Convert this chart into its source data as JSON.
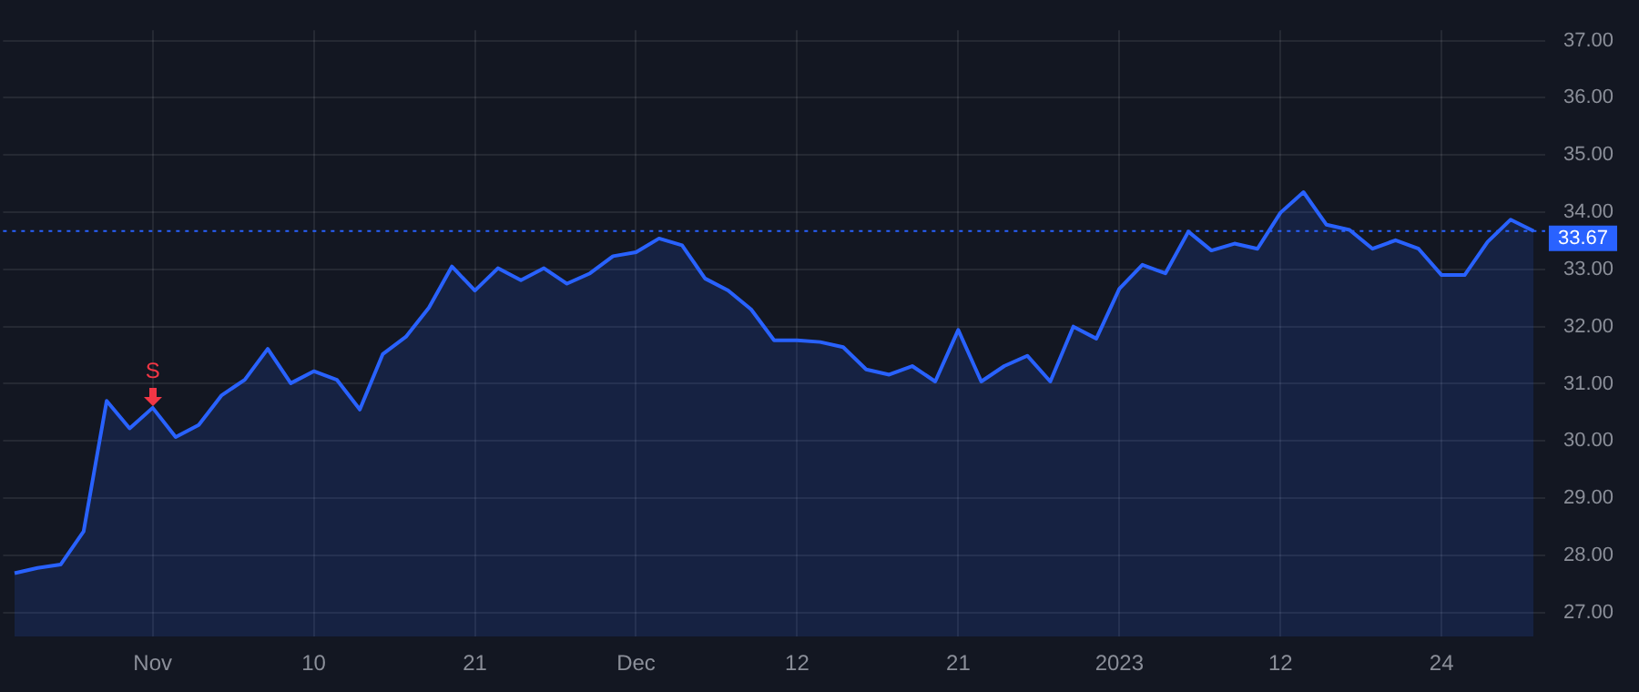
{
  "chart_data": {
    "type": "area",
    "categories": [
      null,
      null,
      null,
      null,
      null,
      null,
      "Nov",
      null,
      null,
      null,
      null,
      null,
      null,
      "10",
      null,
      null,
      null,
      null,
      null,
      null,
      "21",
      null,
      null,
      null,
      null,
      null,
      null,
      "Dec",
      null,
      null,
      null,
      null,
      null,
      null,
      "12",
      null,
      null,
      null,
      null,
      null,
      null,
      "21",
      null,
      null,
      null,
      null,
      null,
      null,
      "2023",
      null,
      null,
      null,
      null,
      null,
      null,
      "12",
      null,
      null,
      null,
      null,
      null,
      null,
      "24",
      null,
      null,
      null,
      null
    ],
    "series": [
      {
        "color": "#2962ff",
        "values": [
          27.69,
          27.78,
          27.84,
          28.42,
          30.7,
          30.22,
          30.58,
          30.07,
          30.28,
          30.8,
          31.07,
          31.61,
          31.01,
          31.22,
          31.07,
          30.55,
          31.52,
          31.82,
          32.33,
          33.05,
          32.63,
          33.02,
          32.81,
          33.02,
          32.75,
          32.93,
          33.23,
          33.3,
          33.54,
          33.42,
          32.84,
          32.63,
          32.3,
          31.76,
          31.76,
          31.73,
          31.64,
          31.25,
          31.16,
          31.31,
          31.04,
          31.94,
          31.04,
          31.31,
          31.49,
          31.04,
          32.0,
          31.79,
          32.66,
          33.08,
          32.93,
          33.66,
          33.33,
          33.45,
          33.36,
          33.99,
          34.35,
          33.78,
          33.69,
          33.36,
          33.51,
          33.36,
          32.9,
          32.9,
          33.48,
          33.87,
          33.67
        ]
      }
    ],
    "ylim": [
      26.58,
      37.18
    ],
    "yticks": [
      {
        "value": 27,
        "label": "27.00"
      },
      {
        "value": 28,
        "label": "28.00"
      },
      {
        "value": 29,
        "label": "29.00"
      },
      {
        "value": 30,
        "label": "30.00"
      },
      {
        "value": 31,
        "label": "31.00"
      },
      {
        "value": 32,
        "label": "32.00"
      },
      {
        "value": 33,
        "label": "33.00"
      },
      {
        "value": 34,
        "label": "34.00"
      },
      {
        "value": 35,
        "label": "35.00"
      },
      {
        "value": 36,
        "label": "36.00"
      },
      {
        "value": 37,
        "label": "37.00"
      }
    ],
    "ref_lines": [
      {
        "axis": "y",
        "value": 33.67,
        "label": "33.67",
        "color": "#2962ff",
        "line_style": "dotted"
      }
    ],
    "annotations": [
      {
        "text": "S",
        "x": "Nov",
        "y": 30.58
      }
    ],
    "grid": true,
    "legend": false,
    "marker": "none"
  }
}
